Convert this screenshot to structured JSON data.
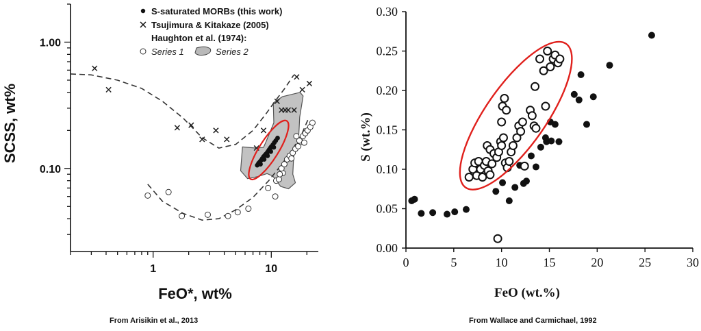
{
  "chart_data": [
    {
      "type": "scatter",
      "title": "",
      "xlabel": "FeO*, wt%",
      "ylabel": "SCSS, wt%",
      "xscale": "log",
      "yscale": "log",
      "xlim": [
        0.2,
        25
      ],
      "ylim": [
        0.022,
        2.0
      ],
      "xticks": [
        1,
        10
      ],
      "xtick_labels": [
        "1",
        "10"
      ],
      "yticks": [
        0.1,
        1.0
      ],
      "ytick_labels": [
        "0.10",
        "1.00"
      ],
      "grid": false,
      "legend_position": "top-center",
      "legend": [
        {
          "label": "S-saturated MORBs (this work)",
          "marker": "filled-circle"
        },
        {
          "label": "Tsujimura & Kitakaze (2005)",
          "marker": "x"
        },
        {
          "label": "Haughton et al. (1974):",
          "marker": "none"
        }
      ],
      "legend_sub": [
        {
          "label": "Series 1",
          "marker": "open-circle"
        },
        {
          "label": "Series 2",
          "marker": "grey-blob"
        }
      ],
      "caption": "From Arisikin et al., 2013",
      "series": [
        {
          "name": "S-saturated MORBs (this work)",
          "marker": "filled-circle",
          "points": [
            [
              7.6,
              0.106
            ],
            [
              7.8,
              0.11
            ],
            [
              8.0,
              0.113
            ],
            [
              8.2,
              0.116
            ],
            [
              8.4,
              0.12
            ],
            [
              8.6,
              0.124
            ],
            [
              8.8,
              0.127
            ],
            [
              9.0,
              0.13
            ],
            [
              9.2,
              0.133
            ],
            [
              9.4,
              0.137
            ],
            [
              9.6,
              0.141
            ],
            [
              9.8,
              0.145
            ],
            [
              10.0,
              0.149
            ],
            [
              10.3,
              0.154
            ],
            [
              10.6,
              0.16
            ],
            [
              10.9,
              0.166
            ],
            [
              11.3,
              0.174
            ],
            [
              8.1,
              0.108
            ],
            [
              8.7,
              0.118
            ],
            [
              9.3,
              0.126
            ],
            [
              9.9,
              0.136
            ],
            [
              10.5,
              0.147
            ]
          ]
        },
        {
          "name": "Tsujimura & Kitakaze (2005)",
          "marker": "x",
          "points": [
            [
              0.32,
              0.62
            ],
            [
              0.42,
              0.42
            ],
            [
              1.6,
              0.21
            ],
            [
              2.1,
              0.22
            ],
            [
              2.6,
              0.17
            ],
            [
              3.4,
              0.2
            ],
            [
              4.2,
              0.17
            ],
            [
              7.5,
              0.145
            ],
            [
              8.6,
              0.2
            ],
            [
              11.2,
              0.34
            ],
            [
              12.2,
              0.29
            ],
            [
              13.1,
              0.29
            ],
            [
              13.9,
              0.29
            ],
            [
              15.6,
              0.29
            ],
            [
              16.4,
              0.53
            ],
            [
              18.3,
              0.42
            ],
            [
              21.0,
              0.47
            ]
          ]
        },
        {
          "name": "Series 1",
          "marker": "open-circle",
          "points": [
            [
              0.9,
              0.061
            ],
            [
              1.35,
              0.065
            ],
            [
              1.75,
              0.042
            ],
            [
              2.9,
              0.043
            ],
            [
              4.3,
              0.042
            ],
            [
              5.2,
              0.045
            ],
            [
              6.4,
              0.048
            ],
            [
              9.4,
              0.07
            ],
            [
              10.8,
              0.06
            ],
            [
              11.0,
              0.08
            ],
            [
              11.6,
              0.082
            ],
            [
              12.5,
              0.092
            ],
            [
              12.2,
              0.1
            ],
            [
              12.9,
              0.108
            ],
            [
              13.6,
              0.118
            ],
            [
              14.3,
              0.126
            ],
            [
              15.2,
              0.133
            ],
            [
              16.0,
              0.143
            ],
            [
              16.9,
              0.15
            ],
            [
              17.8,
              0.162
            ],
            [
              18.5,
              0.18
            ],
            [
              19.4,
              0.19
            ],
            [
              20.3,
              0.2
            ],
            [
              21.4,
              0.213
            ],
            [
              22.3,
              0.23
            ],
            [
              16.3,
              0.18
            ],
            [
              17.3,
              0.166
            ],
            [
              19.0,
              0.16
            ],
            [
              14.8,
              0.12
            ],
            [
              11.8,
              0.09
            ]
          ]
        },
        {
          "name": "Series 2",
          "marker": "grey-blob",
          "polygon": [
            [
              5.5,
              0.096
            ],
            [
              5.7,
              0.148
            ],
            [
              7.5,
              0.145
            ],
            [
              8.6,
              0.147
            ],
            [
              9.0,
              0.162
            ],
            [
              10.5,
              0.23
            ],
            [
              10.4,
              0.33
            ],
            [
              12.4,
              0.37
            ],
            [
              17.5,
              0.4
            ],
            [
              18.6,
              0.375
            ],
            [
              17.4,
              0.255
            ],
            [
              17.1,
              0.185
            ],
            [
              16.6,
              0.15
            ],
            [
              15.5,
              0.13
            ],
            [
              15.2,
              0.09
            ],
            [
              16.0,
              0.077
            ],
            [
              14.0,
              0.069
            ],
            [
              12.0,
              0.072
            ],
            [
              10.3,
              0.087
            ],
            [
              9.2,
              0.091
            ],
            [
              7.6,
              0.086
            ],
            [
              6.3,
              0.083
            ]
          ]
        }
      ],
      "curves": [
        {
          "points": [
            [
              0.2,
              0.56
            ],
            [
              0.3,
              0.55
            ],
            [
              0.5,
              0.5
            ],
            [
              0.8,
              0.43
            ],
            [
              1.2,
              0.34
            ],
            [
              1.8,
              0.25
            ],
            [
              2.6,
              0.175
            ],
            [
              3.6,
              0.145
            ],
            [
              5.0,
              0.155
            ],
            [
              7.0,
              0.2
            ],
            [
              9.0,
              0.27
            ],
            [
              11.0,
              0.35
            ],
            [
              13.0,
              0.43
            ],
            [
              15.5,
              0.55
            ]
          ]
        },
        {
          "points": [
            [
              0.9,
              0.075
            ],
            [
              1.2,
              0.055
            ],
            [
              1.8,
              0.044
            ],
            [
              2.6,
              0.039
            ],
            [
              3.6,
              0.04
            ],
            [
              5.0,
              0.047
            ],
            [
              7.0,
              0.059
            ],
            [
              9.5,
              0.08
            ],
            [
              12.0,
              0.105
            ],
            [
              15.0,
              0.14
            ],
            [
              18.0,
              0.185
            ],
            [
              20.5,
              0.245
            ]
          ]
        }
      ],
      "ellipse": {
        "cx": 9.5,
        "cy": 0.14,
        "color": "#e0201c"
      }
    },
    {
      "type": "scatter",
      "title": "",
      "xlabel": "FeO  (wt.%)",
      "ylabel": "S  (wt.%)",
      "xlim": [
        0,
        30
      ],
      "ylim": [
        0,
        0.3
      ],
      "xticks": [
        0,
        5,
        10,
        15,
        20,
        25,
        30
      ],
      "xtick_labels": [
        "0",
        "5",
        "10",
        "15",
        "20",
        "25",
        "30"
      ],
      "yticks": [
        0,
        0.05,
        0.1,
        0.15,
        0.2,
        0.25,
        0.3
      ],
      "ytick_labels": [
        "0.00",
        "0.05",
        "0.10",
        "0.15",
        "0.20",
        "0.25",
        "0.30"
      ],
      "grid": false,
      "caption": "From Wallace and Carmichael, 1992",
      "series": [
        {
          "name": "",
          "marker": "filled-circle",
          "points": [
            [
              0.6,
              0.06
            ],
            [
              0.9,
              0.062
            ],
            [
              1.6,
              0.044
            ],
            [
              2.8,
              0.045
            ],
            [
              4.3,
              0.043
            ],
            [
              5.1,
              0.046
            ],
            [
              6.3,
              0.049
            ],
            [
              9.4,
              0.072
            ],
            [
              10.1,
              0.083
            ],
            [
              10.8,
              0.06
            ],
            [
              11.4,
              0.077
            ],
            [
              11.9,
              0.105
            ],
            [
              12.3,
              0.082
            ],
            [
              13.1,
              0.117
            ],
            [
              13.6,
              0.103
            ],
            [
              14.1,
              0.128
            ],
            [
              14.6,
              0.14
            ],
            [
              14.7,
              0.135
            ],
            [
              15.1,
              0.16
            ],
            [
              15.2,
              0.136
            ],
            [
              15.6,
              0.157
            ],
            [
              16.0,
              0.135
            ],
            [
              17.6,
              0.195
            ],
            [
              18.1,
              0.188
            ],
            [
              18.3,
              0.22
            ],
            [
              18.9,
              0.157
            ],
            [
              19.6,
              0.192
            ],
            [
              21.3,
              0.232
            ],
            [
              25.7,
              0.27
            ],
            [
              12.6,
              0.085
            ]
          ]
        },
        {
          "name": "",
          "marker": "open-circle",
          "points": [
            [
              6.6,
              0.09
            ],
            [
              7.0,
              0.1
            ],
            [
              7.2,
              0.108
            ],
            [
              7.4,
              0.092
            ],
            [
              7.6,
              0.11
            ],
            [
              7.8,
              0.1
            ],
            [
              8.0,
              0.09
            ],
            [
              8.2,
              0.105
            ],
            [
              8.4,
              0.11
            ],
            [
              8.6,
              0.098
            ],
            [
              8.8,
              0.093
            ],
            [
              9.0,
              0.107
            ],
            [
              8.5,
              0.13
            ],
            [
              8.8,
              0.125
            ],
            [
              9.2,
              0.12
            ],
            [
              9.5,
              0.115
            ],
            [
              9.7,
              0.122
            ],
            [
              9.9,
              0.135
            ],
            [
              10.0,
              0.13
            ],
            [
              10.2,
              0.14
            ],
            [
              10.4,
              0.108
            ],
            [
              10.6,
              0.102
            ],
            [
              10.8,
              0.11
            ],
            [
              11.0,
              0.122
            ],
            [
              11.2,
              0.13
            ],
            [
              10.0,
              0.16
            ],
            [
              10.1,
              0.18
            ],
            [
              10.3,
              0.19
            ],
            [
              10.5,
              0.175
            ],
            [
              11.6,
              0.14
            ],
            [
              11.8,
              0.155
            ],
            [
              12.0,
              0.148
            ],
            [
              12.2,
              0.16
            ],
            [
              12.4,
              0.104
            ],
            [
              13.0,
              0.175
            ],
            [
              13.2,
              0.168
            ],
            [
              13.4,
              0.155
            ],
            [
              13.6,
              0.152
            ],
            [
              13.5,
              0.205
            ],
            [
              14.0,
              0.24
            ],
            [
              14.4,
              0.225
            ],
            [
              14.6,
              0.18
            ],
            [
              14.8,
              0.25
            ],
            [
              15.1,
              0.23
            ],
            [
              15.4,
              0.24
            ],
            [
              15.6,
              0.245
            ],
            [
              15.9,
              0.235
            ],
            [
              16.1,
              0.24
            ],
            [
              9.6,
              0.012
            ]
          ]
        }
      ],
      "ellipse": {
        "cx": 11.5,
        "cy": 0.168,
        "color": "#e0201c"
      }
    }
  ]
}
